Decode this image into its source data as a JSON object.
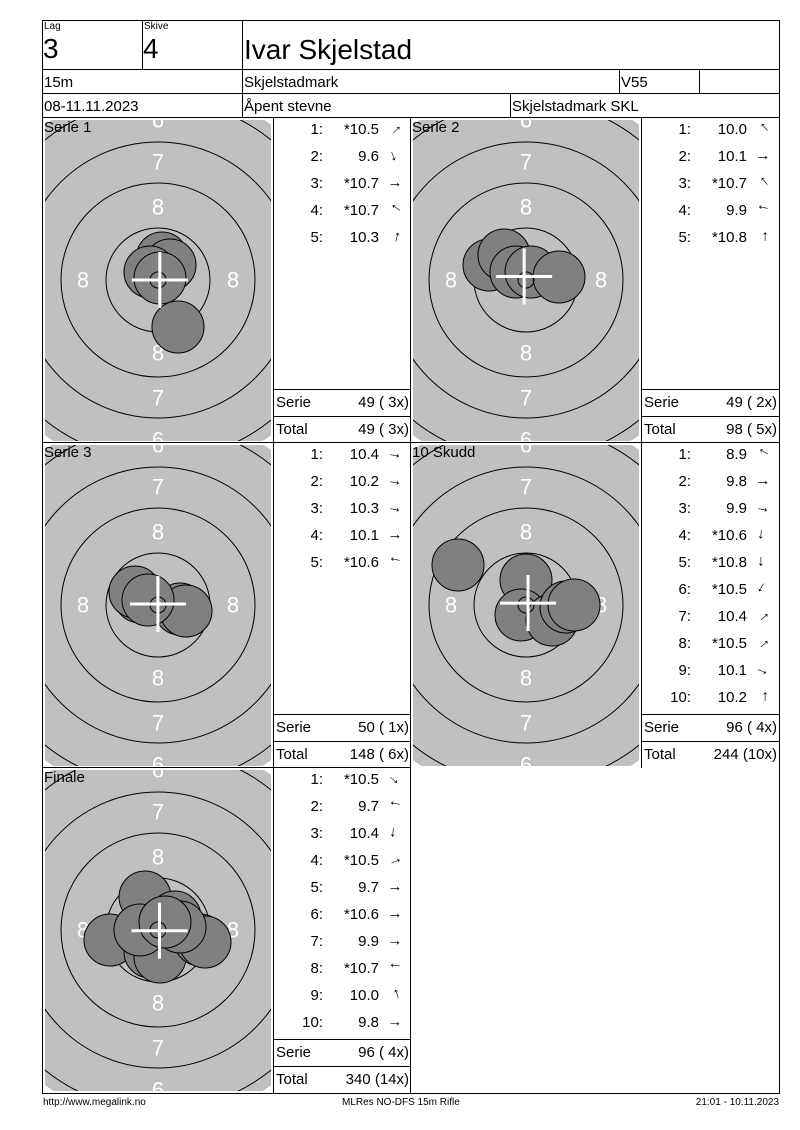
{
  "header": {
    "lag_label": "Lag",
    "lag": "3",
    "skive_label": "Skive",
    "skive": "4",
    "name": "Ivar Skjelstad",
    "distance": "15m",
    "club": "Skjelstadmark",
    "class": "V55",
    "extra": "",
    "date": "08-11.11.2023",
    "event": "Åpent stevne",
    "organizer": "Skjelstadmark SKL"
  },
  "colors": {
    "target_gray": "#c0c0c0",
    "shot": "#808080",
    "ring_label": "#ffffff"
  },
  "ring_labels": {
    "six": "6",
    "seven": "7",
    "eight": "8"
  },
  "panels": [
    {
      "title": "Serie 1",
      "shots": [
        {
          "n": "1:",
          "v": "*10.5",
          "dir": 45
        },
        {
          "n": "2:",
          "v": "9.6",
          "dir": -70
        },
        {
          "n": "3:",
          "v": "*10.7",
          "dir": 0
        },
        {
          "n": "4:",
          "v": "*10.7",
          "dir": 145
        },
        {
          "n": "5:",
          "v": "10.3",
          "dir": 75
        }
      ],
      "serie_label": "Serie",
      "serie": "49 ( 3x)",
      "total_label": "Total",
      "total": "49 ( 3x)"
    },
    {
      "title": "Serie 2",
      "shots": [
        {
          "n": "1:",
          "v": "10.0",
          "dir": 130
        },
        {
          "n": "2:",
          "v": "10.1",
          "dir": 0
        },
        {
          "n": "3:",
          "v": "*10.7",
          "dir": 130
        },
        {
          "n": "4:",
          "v": "9.9",
          "dir": 170
        },
        {
          "n": "5:",
          "v": "*10.8",
          "dir": 90
        }
      ],
      "serie_label": "Serie",
      "serie": "49 ( 2x)",
      "total_label": "Total",
      "total": "98 ( 5x)"
    },
    {
      "title": "Serie 3",
      "shots": [
        {
          "n": "1:",
          "v": "10.4",
          "dir": -10
        },
        {
          "n": "2:",
          "v": "10.2",
          "dir": -10
        },
        {
          "n": "3:",
          "v": "10.3",
          "dir": -10
        },
        {
          "n": "4:",
          "v": "10.1",
          "dir": 0
        },
        {
          "n": "5:",
          "v": "*10.6",
          "dir": 170
        }
      ],
      "serie_label": "Serie",
      "serie": "50 ( 1x)",
      "total_label": "Total",
      "total": "148 ( 6x)"
    },
    {
      "title": "10 Skudd",
      "shots": [
        {
          "n": "1:",
          "v": "8.9",
          "dir": 150
        },
        {
          "n": "2:",
          "v": "9.8",
          "dir": 0
        },
        {
          "n": "3:",
          "v": "9.9",
          "dir": -10
        },
        {
          "n": "4:",
          "v": "*10.6",
          "dir": -95
        },
        {
          "n": "5:",
          "v": "*10.8",
          "dir": -90
        },
        {
          "n": "6:",
          "v": "*10.5",
          "dir": -120
        },
        {
          "n": "7:",
          "v": "10.4",
          "dir": 40
        },
        {
          "n": "8:",
          "v": "*10.5",
          "dir": 40
        },
        {
          "n": "9:",
          "v": "10.1",
          "dir": -25
        },
        {
          "n": "10:",
          "v": "10.2",
          "dir": 90
        }
      ],
      "serie_label": "Serie",
      "serie": "96 ( 4x)",
      "total_label": "Total",
      "total": "244 (10x)"
    },
    {
      "title": "Finale",
      "shots": [
        {
          "n": "1:",
          "v": "*10.5",
          "dir": -40
        },
        {
          "n": "2:",
          "v": "9.7",
          "dir": 170
        },
        {
          "n": "3:",
          "v": "10.4",
          "dir": -95
        },
        {
          "n": "4:",
          "v": "*10.5",
          "dir": 20
        },
        {
          "n": "5:",
          "v": "9.7",
          "dir": 0
        },
        {
          "n": "6:",
          "v": "*10.6",
          "dir": 0
        },
        {
          "n": "7:",
          "v": "9.9",
          "dir": -5
        },
        {
          "n": "8:",
          "v": "*10.7",
          "dir": 175
        },
        {
          "n": "9:",
          "v": "10.0",
          "dir": 110
        },
        {
          "n": "10:",
          "v": "9.8",
          "dir": -5
        }
      ],
      "serie_label": "Serie",
      "serie": "96 ( 4x)",
      "total_label": "Total",
      "total": "340 (14x)"
    }
  ],
  "footer": {
    "left": "http://www.megalink.no",
    "center": "MLRes NO-DFS 15m Rifle",
    "right": "21:01 - 10.11.2023"
  }
}
